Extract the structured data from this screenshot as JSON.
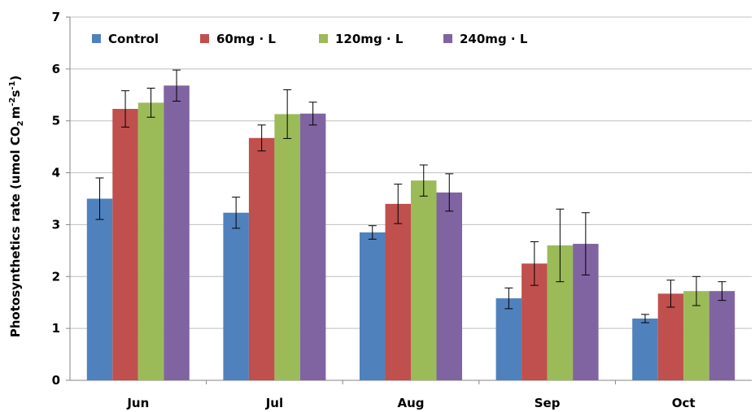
{
  "chart_data": {
    "type": "bar",
    "title": "",
    "xlabel": "",
    "ylabel": "Photosynthetics rate (umol CO2 m-2s-1)",
    "ylabel_parts": {
      "main": "Photosynthetics rate (umol CO",
      "sub": "2",
      "mid": "m",
      "sup1": "-2",
      "mid2": "s",
      "sup2": "-1",
      "end": ")"
    },
    "ylim": [
      0,
      7
    ],
    "yticks": [
      "0",
      "1",
      "2",
      "3",
      "4",
      "5",
      "6",
      "7"
    ],
    "grid": true,
    "legend_position": "top-left",
    "categories": [
      "Jun",
      "Jul",
      "Aug",
      "Sep",
      "Oct"
    ],
    "series": [
      {
        "name": "Control",
        "color": "#4f81bd",
        "values": [
          3.5,
          3.23,
          2.85,
          1.58,
          1.19
        ],
        "errors": [
          0.4,
          0.3,
          0.13,
          0.2,
          0.08
        ]
      },
      {
        "name": "60mg · L",
        "color": "#c0504d",
        "values": [
          5.23,
          4.67,
          3.4,
          2.25,
          1.67
        ],
        "errors": [
          0.35,
          0.25,
          0.38,
          0.42,
          0.26
        ]
      },
      {
        "name": "120mg · L",
        "color": "#9bbb59",
        "values": [
          5.35,
          5.13,
          3.85,
          2.6,
          1.72
        ],
        "errors": [
          0.28,
          0.47,
          0.3,
          0.7,
          0.28
        ]
      },
      {
        "name": "240mg · L",
        "color": "#8064a2",
        "values": [
          5.68,
          5.14,
          3.62,
          2.63,
          1.72
        ],
        "errors": [
          0.3,
          0.22,
          0.36,
          0.6,
          0.18
        ]
      }
    ]
  }
}
